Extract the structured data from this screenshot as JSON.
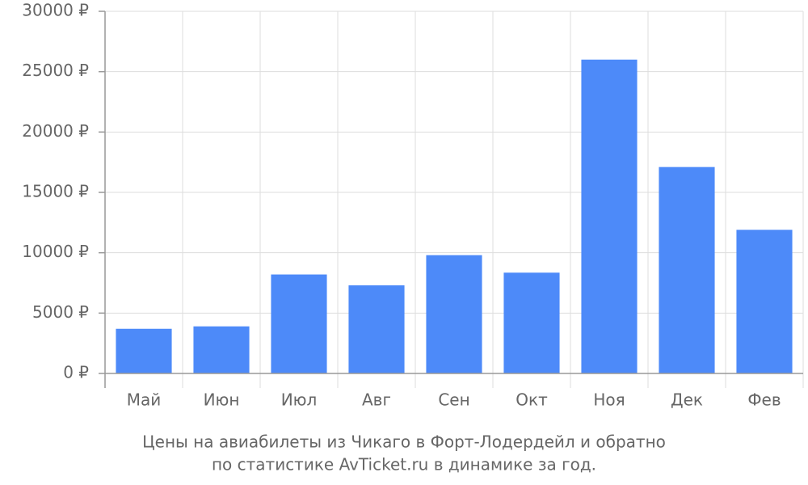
{
  "chart_data": {
    "type": "bar",
    "title_lines": [
      "Цены на авиабилеты из Чикаго в Форт-Лодердейл и обратно",
      "по статистике AvTicket.ru в динамике за год."
    ],
    "categories": [
      "Май",
      "Июн",
      "Июл",
      "Авг",
      "Сен",
      "Окт",
      "Ноя",
      "Дек",
      "Фев"
    ],
    "values": [
      3700,
      3900,
      8200,
      7300,
      9800,
      8350,
      26000,
      17100,
      11900
    ],
    "color": "#4d8af9",
    "ylim": [
      0,
      30000
    ],
    "yticks": [
      {
        "value": 0,
        "label": "0 ₽"
      },
      {
        "value": 5000,
        "label": "5000 ₽"
      },
      {
        "value": 10000,
        "label": "10000 ₽"
      },
      {
        "value": 15000,
        "label": "15000 ₽"
      },
      {
        "value": 20000,
        "label": "20000 ₽"
      },
      {
        "value": 25000,
        "label": "25000 ₽"
      },
      {
        "value": 30000,
        "label": "30000 ₽"
      }
    ],
    "grid": true
  }
}
